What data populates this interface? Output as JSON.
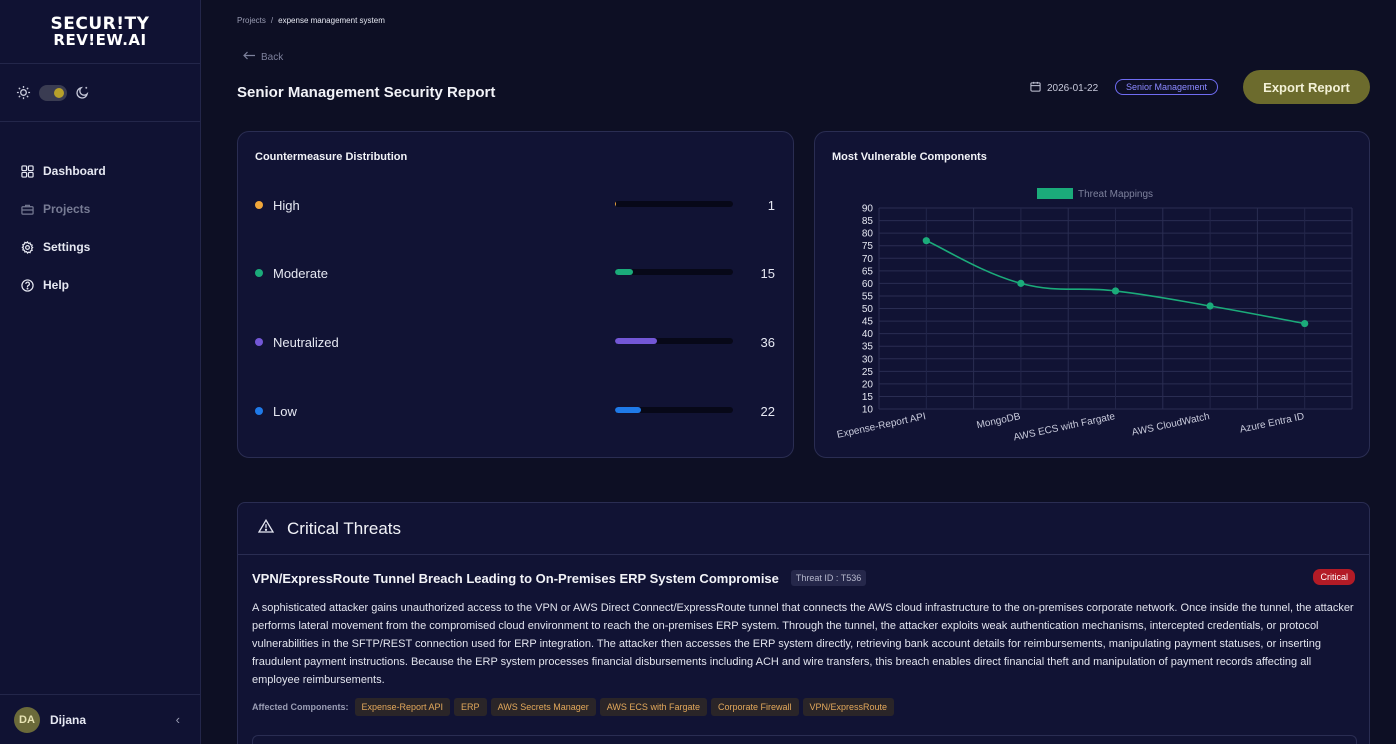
{
  "brand": {
    "line1": "SECUR!TY",
    "line2": "REV!EW.AI"
  },
  "sidebar": {
    "items": [
      {
        "label": "Dashboard",
        "icon": "grid-icon"
      },
      {
        "label": "Projects",
        "icon": "briefcase-icon"
      },
      {
        "label": "Settings",
        "icon": "gear-icon"
      },
      {
        "label": "Help",
        "icon": "help-icon"
      }
    ],
    "user": {
      "initials": "DA",
      "name": "Dijana"
    },
    "collapse_glyph": "‹"
  },
  "breadcrumb": {
    "root": "Projects",
    "separator": "/",
    "current": "expense management system"
  },
  "header": {
    "back_label": "Back",
    "title": "Senior Management Security Report",
    "date": "2026-01-22",
    "audience_badge": "Senior Management",
    "export_label": "Export Report"
  },
  "distribution": {
    "title": "Countermeasure Distribution",
    "max": 100,
    "rows": [
      {
        "label": "High",
        "value": "1",
        "level": 0.01,
        "color": "#f0a63a"
      },
      {
        "label": "Moderate",
        "value": "15",
        "level": 0.15,
        "color": "#1bab7a"
      },
      {
        "label": "Neutralized",
        "value": "36",
        "level": 0.36,
        "color": "#7357d6"
      },
      {
        "label": "Low",
        "value": "22",
        "level": 0.22,
        "color": "#1f7ae8"
      }
    ]
  },
  "chart_data": {
    "type": "line",
    "title": "Most Vulnerable Components",
    "categories": [
      "Expense-Report API",
      "MongoDB",
      "AWS ECS with Fargate",
      "AWS CloudWatch",
      "Azure Entra ID"
    ],
    "series": [
      {
        "name": "Threat Mappings",
        "values": [
          77,
          60,
          57,
          51,
          44
        ],
        "color": "#1bab7a"
      }
    ],
    "yticks": [
      "10",
      "15",
      "20",
      "25",
      "30",
      "35",
      "40",
      "45",
      "50",
      "55",
      "60",
      "65",
      "70",
      "75",
      "80",
      "85",
      "90"
    ],
    "ylim": [
      10,
      90
    ],
    "grid": true,
    "legend": "top-center"
  },
  "threats": {
    "title": "Critical Threats",
    "item": {
      "title": "VPN/ExpressRoute Tunnel Breach Leading to On-Premises ERP System Compromise",
      "threat_id": "Threat ID : T536",
      "severity": "Critical",
      "description": "A sophisticated attacker gains unauthorized access to the VPN or AWS Direct Connect/ExpressRoute tunnel that connects the AWS cloud infrastructure to the on-premises corporate network. Once inside the tunnel, the attacker performs lateral movement from the compromised cloud environment to reach the on-premises ERP system. Through the tunnel, the attacker exploits weak authentication mechanisms, intercepted credentials, or protocol vulnerabilities in the SFTP/REST connection used for ERP integration. The attacker then accesses the ERP system directly, retrieving bank account details for reimbursements, manipulating payment statuses, or inserting fraudulent payment instructions. Because the ERP system processes financial disbursements including ACH and wire transfers, this breach enables direct financial theft and manipulation of payment records affecting all employee reimbursements.",
      "affected_label": "Affected Components:",
      "components": [
        "Expense-Report API",
        "ERP",
        "AWS Secrets Manager",
        "AWS ECS with Fargate",
        "Corporate Firewall",
        "VPN/ExpressRoute"
      ]
    }
  }
}
